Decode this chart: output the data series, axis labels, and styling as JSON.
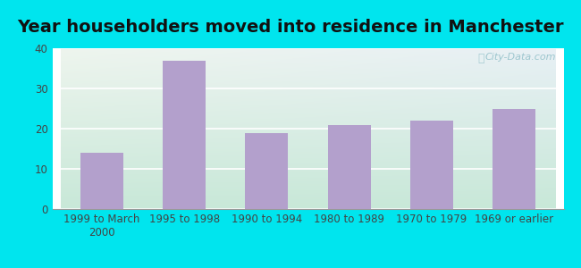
{
  "title": "Year householders moved into residence in Manchester",
  "categories": [
    "1999 to March\n2000",
    "1995 to 1998",
    "1990 to 1994",
    "1980 to 1989",
    "1970 to 1979",
    "1969 or earlier"
  ],
  "values": [
    14,
    37,
    19,
    21,
    22,
    25
  ],
  "bar_color": "#b3a0cc",
  "ylim": [
    0,
    40
  ],
  "yticks": [
    0,
    10,
    20,
    30,
    40
  ],
  "background_outer": "#00e5ee",
  "background_inner_top_left": "#eef5ee",
  "background_inner_top_right": "#e8f0f5",
  "background_inner_bottom": "#c8e8d8",
  "title_fontsize": 14,
  "tick_fontsize": 8.5,
  "watermark": "City-Data.com"
}
